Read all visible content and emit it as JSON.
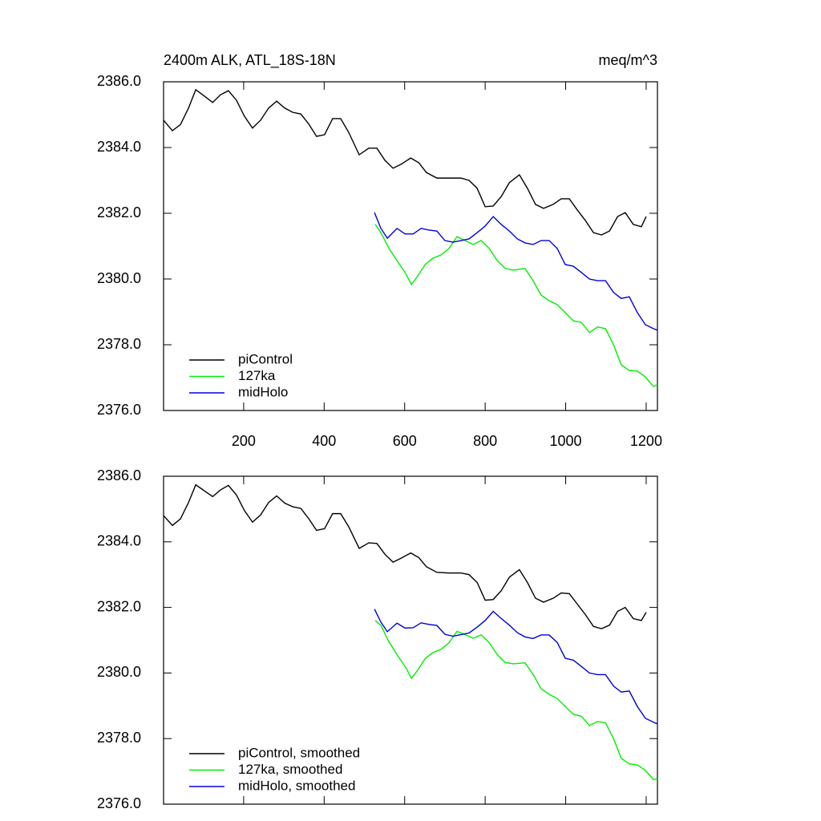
{
  "chart_data": [
    {
      "type": "line",
      "title": "2400m ALK, ATL_18S-18N",
      "units": "meq/m^3",
      "xlim": [
        1,
        1228
      ],
      "ylim": [
        2376,
        2386
      ],
      "xticks": [
        200,
        400,
        600,
        800,
        1000,
        1200
      ],
      "show_xtick_labels": true,
      "yticks": [
        {
          "value": 2376,
          "label": "2376.0"
        },
        {
          "value": 2378,
          "label": "2378.0"
        },
        {
          "value": 2380,
          "label": "2380.0"
        },
        {
          "value": 2382,
          "label": "2382.0"
        },
        {
          "value": 2384,
          "label": "2384.0"
        },
        {
          "value": 2386,
          "label": "2386.0"
        }
      ],
      "legend": "lower-left",
      "series": [
        {
          "name": "piControl",
          "color": "#000000",
          "x": [
            1,
            23,
            43,
            63,
            81,
            103,
            123,
            142,
            162,
            182,
            202,
            222,
            242,
            262,
            282,
            302,
            322,
            342,
            362,
            381,
            401,
            421,
            441,
            461,
            487,
            511,
            531,
            551,
            571,
            591,
            615,
            635,
            654,
            680,
            710,
            740,
            760,
            780,
            800,
            820,
            840,
            860,
            885,
            905,
            925,
            945,
            969,
            989,
            1009,
            1029,
            1049,
            1069,
            1089,
            1109,
            1129,
            1148,
            1168,
            1188,
            1200
          ],
          "values": [
            2384.83,
            2384.51,
            2384.7,
            2385.2,
            2385.76,
            2385.56,
            2385.37,
            2385.6,
            2385.73,
            2385.44,
            2384.95,
            2384.59,
            2384.83,
            2385.2,
            2385.41,
            2385.2,
            2385.07,
            2385.02,
            2384.71,
            2384.34,
            2384.39,
            2384.88,
            2384.88,
            2384.46,
            2383.78,
            2383.98,
            2383.98,
            2383.61,
            2383.37,
            2383.49,
            2383.68,
            2383.54,
            2383.24,
            2383.07,
            2383.07,
            2383.07,
            2383.0,
            2382.76,
            2382.2,
            2382.22,
            2382.51,
            2382.93,
            2383.17,
            2382.76,
            2382.27,
            2382.15,
            2382.27,
            2382.44,
            2382.44,
            2382.1,
            2381.78,
            2381.41,
            2381.34,
            2381.46,
            2381.9,
            2382.02,
            2381.66,
            2381.59,
            2381.9
          ]
        },
        {
          "name": "127ka",
          "color": "#00ee00",
          "x": [
            527,
            541,
            561,
            581,
            601,
            617,
            631,
            651,
            670,
            690,
            710,
            730,
            750,
            770,
            790,
            810,
            830,
            850,
            870,
            899,
            919,
            939,
            959,
            979,
            999,
            1019,
            1039,
            1059,
            1079,
            1099,
            1119,
            1138,
            1158,
            1178,
            1198,
            1218,
            1228
          ],
          "values": [
            2381.66,
            2381.41,
            2380.93,
            2380.56,
            2380.2,
            2379.83,
            2380.07,
            2380.44,
            2380.63,
            2380.73,
            2380.93,
            2381.29,
            2381.17,
            2381.05,
            2381.17,
            2380.93,
            2380.56,
            2380.32,
            2380.27,
            2380.32,
            2379.95,
            2379.51,
            2379.34,
            2379.22,
            2378.98,
            2378.73,
            2378.68,
            2378.37,
            2378.54,
            2378.49,
            2378.0,
            2377.39,
            2377.22,
            2377.2,
            2377.02,
            2376.73,
            2376.78
          ]
        },
        {
          "name": "midHolo",
          "color": "#0000dd",
          "x": [
            525,
            541,
            557,
            581,
            601,
            621,
            641,
            660,
            680,
            700,
            720,
            740,
            760,
            780,
            800,
            820,
            840,
            860,
            880,
            899,
            919,
            939,
            959,
            979,
            999,
            1019,
            1039,
            1059,
            1079,
            1099,
            1119,
            1138,
            1158,
            1178,
            1198,
            1218,
            1228
          ],
          "values": [
            2382.02,
            2381.54,
            2381.24,
            2381.54,
            2381.37,
            2381.37,
            2381.54,
            2381.49,
            2381.46,
            2381.17,
            2381.12,
            2381.17,
            2381.22,
            2381.41,
            2381.61,
            2381.9,
            2381.66,
            2381.46,
            2381.22,
            2381.1,
            2381.05,
            2381.17,
            2381.17,
            2380.93,
            2380.44,
            2380.39,
            2380.2,
            2380.0,
            2379.95,
            2379.95,
            2379.59,
            2379.41,
            2379.46,
            2378.98,
            2378.61,
            2378.49,
            2378.44
          ]
        }
      ]
    },
    {
      "type": "line",
      "xlim": [
        1,
        1228
      ],
      "ylim": [
        2376,
        2386
      ],
      "xticks": [
        200,
        400,
        600,
        800,
        1000,
        1200
      ],
      "show_xtick_labels": false,
      "yticks": [
        {
          "value": 2376,
          "label": "2376.0"
        },
        {
          "value": 2378,
          "label": "2378.0"
        },
        {
          "value": 2380,
          "label": "2380.0"
        },
        {
          "value": 2382,
          "label": "2382.0"
        },
        {
          "value": 2384,
          "label": "2384.0"
        },
        {
          "value": 2386,
          "label": "2386.0"
        }
      ],
      "legend": "lower-left",
      "series": [
        {
          "name": "piControl, smoothed",
          "color": "#000000",
          "x": [
            1,
            23,
            43,
            63,
            81,
            103,
            123,
            142,
            162,
            182,
            202,
            222,
            242,
            262,
            282,
            302,
            322,
            342,
            362,
            381,
            401,
            421,
            441,
            461,
            487,
            511,
            531,
            551,
            571,
            591,
            615,
            635,
            654,
            680,
            710,
            740,
            760,
            780,
            800,
            820,
            840,
            860,
            885,
            905,
            925,
            945,
            969,
            989,
            1009,
            1029,
            1049,
            1069,
            1089,
            1109,
            1129,
            1148,
            1168,
            1188,
            1200
          ],
          "values": [
            2384.8,
            2384.5,
            2384.7,
            2385.2,
            2385.74,
            2385.55,
            2385.38,
            2385.58,
            2385.72,
            2385.43,
            2384.95,
            2384.6,
            2384.82,
            2385.2,
            2385.4,
            2385.18,
            2385.07,
            2385.02,
            2384.7,
            2384.35,
            2384.4,
            2384.86,
            2384.86,
            2384.46,
            2383.8,
            2383.97,
            2383.95,
            2383.62,
            2383.38,
            2383.5,
            2383.66,
            2383.52,
            2383.24,
            2383.07,
            2383.05,
            2383.05,
            2383.0,
            2382.76,
            2382.22,
            2382.24,
            2382.51,
            2382.92,
            2383.15,
            2382.76,
            2382.28,
            2382.16,
            2382.28,
            2382.44,
            2382.42,
            2382.1,
            2381.78,
            2381.42,
            2381.35,
            2381.46,
            2381.88,
            2382.0,
            2381.66,
            2381.6,
            2381.85
          ]
        },
        {
          "name": "127ka, smoothed",
          "color": "#00ee00",
          "x": [
            527,
            541,
            561,
            581,
            601,
            617,
            631,
            651,
            670,
            690,
            710,
            730,
            750,
            770,
            790,
            810,
            830,
            850,
            870,
            899,
            919,
            939,
            959,
            979,
            999,
            1019,
            1039,
            1059,
            1079,
            1099,
            1119,
            1138,
            1158,
            1178,
            1198,
            1218,
            1228
          ],
          "values": [
            2381.6,
            2381.45,
            2380.95,
            2380.56,
            2380.2,
            2379.84,
            2380.06,
            2380.44,
            2380.62,
            2380.72,
            2380.92,
            2381.27,
            2381.17,
            2381.06,
            2381.16,
            2380.93,
            2380.56,
            2380.32,
            2380.28,
            2380.31,
            2379.96,
            2379.52,
            2379.35,
            2379.22,
            2378.98,
            2378.74,
            2378.68,
            2378.4,
            2378.52,
            2378.48,
            2378.0,
            2377.4,
            2377.23,
            2377.2,
            2377.03,
            2376.75,
            2376.78
          ]
        },
        {
          "name": "midHolo, smoothed",
          "color": "#0000dd",
          "x": [
            525,
            541,
            557,
            581,
            601,
            621,
            641,
            660,
            680,
            700,
            720,
            740,
            760,
            780,
            800,
            820,
            840,
            860,
            880,
            899,
            919,
            939,
            959,
            979,
            999,
            1019,
            1039,
            1059,
            1079,
            1099,
            1119,
            1138,
            1158,
            1178,
            1198,
            1218,
            1228
          ],
          "values": [
            2381.95,
            2381.55,
            2381.26,
            2381.52,
            2381.37,
            2381.38,
            2381.53,
            2381.48,
            2381.45,
            2381.18,
            2381.12,
            2381.17,
            2381.22,
            2381.4,
            2381.6,
            2381.88,
            2381.66,
            2381.46,
            2381.23,
            2381.1,
            2381.05,
            2381.16,
            2381.16,
            2380.93,
            2380.45,
            2380.39,
            2380.2,
            2380.0,
            2379.95,
            2379.95,
            2379.6,
            2379.42,
            2379.45,
            2378.98,
            2378.62,
            2378.5,
            2378.45
          ]
        }
      ]
    }
  ]
}
